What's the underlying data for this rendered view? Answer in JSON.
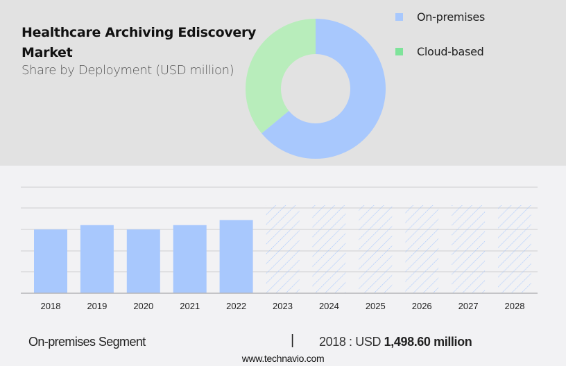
{
  "header": {
    "title_line1": "Healthcare Archiving Ediscovery",
    "title_line2": "Market",
    "subtitle": "Share by Deployment (USD million)"
  },
  "legend": [
    {
      "label": "On-premises",
      "color": "#a8c8fd"
    },
    {
      "label": "Cloud-based",
      "color": "#7ee39a"
    }
  ],
  "footer": {
    "segment": "On-premises Segment",
    "separator": "|",
    "year_prefix": "2018 : USD ",
    "value": "1,498.60 million",
    "url": "www.technavio.com"
  },
  "colors": {
    "on_premises": "#a8c8fd",
    "cloud_based_donut": "#b8edbb",
    "cloud_based_legend": "#7ee39a",
    "top_bg": "#e2e2e2",
    "bottom_bg": "#f2f2f4"
  },
  "chart_data": [
    {
      "type": "pie",
      "title": "Healthcare Archiving Ediscovery Market - Share by Deployment (USD million)",
      "donut": true,
      "categories": [
        "On-premises",
        "Cloud-based"
      ],
      "values": [
        64,
        36
      ],
      "unit": "% share (estimated)"
    },
    {
      "type": "bar",
      "title": "On-premises Segment",
      "categories": [
        "2018",
        "2019",
        "2020",
        "2021",
        "2022",
        "2023",
        "2024",
        "2025",
        "2026",
        "2027",
        "2028"
      ],
      "values": [
        1498.6,
        1600,
        1498.6,
        1600,
        1720,
        null,
        null,
        null,
        null,
        null,
        null
      ],
      "forecast": [
        false,
        false,
        false,
        false,
        false,
        true,
        true,
        true,
        true,
        true,
        true
      ],
      "annotation": "2018 : USD 1,498.60 million",
      "xlabel": "",
      "ylabel": "",
      "grid": true,
      "yaxis_labels_visible": false
    }
  ]
}
